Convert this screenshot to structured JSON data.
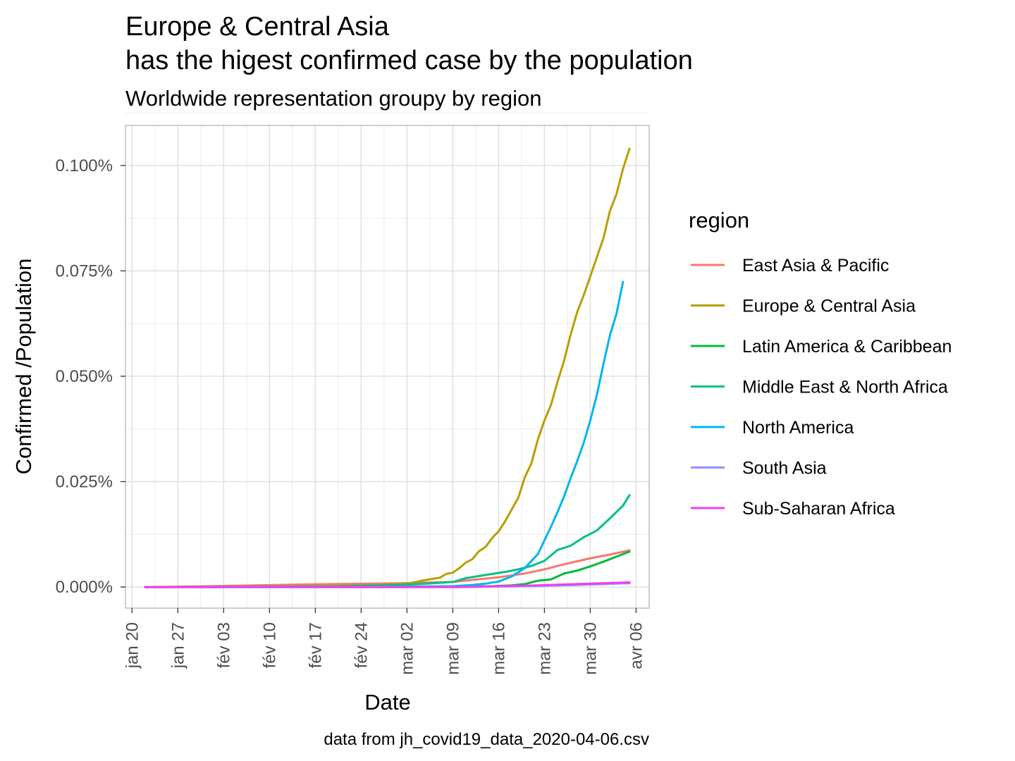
{
  "chart_data": {
    "type": "line",
    "title_line1": "Europe & Central Asia",
    "title_line2": "has the higest confirmed case by the population",
    "subtitle": "Worldwide representation groupy by region",
    "xlabel": "Date",
    "ylabel": "Confirmed /Population",
    "caption": "data from jh_covid19_data_2020-04-06.csv",
    "legend_title": "region",
    "legend_position": "right",
    "grid": true,
    "x_ticks": [
      {
        "date": "2020-01-20",
        "label": "jan 20"
      },
      {
        "date": "2020-01-27",
        "label": "jan 27"
      },
      {
        "date": "2020-02-03",
        "label": "fév 03"
      },
      {
        "date": "2020-02-10",
        "label": "fév 10"
      },
      {
        "date": "2020-02-17",
        "label": "fév 17"
      },
      {
        "date": "2020-02-24",
        "label": "fév 24"
      },
      {
        "date": "2020-03-02",
        "label": "mar 02"
      },
      {
        "date": "2020-03-09",
        "label": "mar 09"
      },
      {
        "date": "2020-03-16",
        "label": "mar 16"
      },
      {
        "date": "2020-03-23",
        "label": "mar 23"
      },
      {
        "date": "2020-03-30",
        "label": "mar 30"
      },
      {
        "date": "2020-04-06",
        "label": "avr 06"
      }
    ],
    "xlim": [
      "2020-01-19",
      "2020-04-08"
    ],
    "y_ticks": [
      {
        "value": 0,
        "label": "0.000%"
      },
      {
        "value": 0.025,
        "label": "0.025%"
      },
      {
        "value": 0.05,
        "label": "0.050%"
      },
      {
        "value": 0.075,
        "label": "0.075%"
      },
      {
        "value": 0.1,
        "label": "0.100%"
      }
    ],
    "ylim": [
      -0.005,
      0.1095
    ],
    "series": [
      {
        "name": "East Asia & Pacific",
        "color": "#F8766D",
        "points": [
          [
            "2020-01-22",
            0.0
          ],
          [
            "2020-02-01",
            0.0002
          ],
          [
            "2020-02-15",
            0.0006
          ],
          [
            "2020-03-01",
            0.0009
          ],
          [
            "2020-03-09",
            0.0012
          ],
          [
            "2020-03-16",
            0.0023
          ],
          [
            "2020-03-20",
            0.0032
          ],
          [
            "2020-03-23",
            0.0042
          ],
          [
            "2020-03-26",
            0.0054
          ],
          [
            "2020-03-30",
            0.0068
          ],
          [
            "2020-04-02",
            0.0077
          ],
          [
            "2020-04-05",
            0.0087
          ]
        ]
      },
      {
        "name": "Europe & Central Asia",
        "color": "#B79F00",
        "points": [
          [
            "2020-01-22",
            0.0
          ],
          [
            "2020-02-01",
            0.0
          ],
          [
            "2020-02-20",
            0.0003
          ],
          [
            "2020-02-27",
            0.0005
          ],
          [
            "2020-03-02",
            0.0008
          ],
          [
            "2020-03-05",
            0.0017
          ],
          [
            "2020-03-07",
            0.0022
          ],
          [
            "2020-03-08",
            0.0031
          ],
          [
            "2020-03-09",
            0.0034
          ],
          [
            "2020-03-10",
            0.0045
          ],
          [
            "2020-03-11",
            0.0058
          ],
          [
            "2020-03-12",
            0.0066
          ],
          [
            "2020-03-13",
            0.0085
          ],
          [
            "2020-03-14",
            0.0095
          ],
          [
            "2020-03-15",
            0.0116
          ],
          [
            "2020-03-16",
            0.0132
          ],
          [
            "2020-03-17",
            0.0156
          ],
          [
            "2020-03-18",
            0.0184
          ],
          [
            "2020-03-19",
            0.0212
          ],
          [
            "2020-03-20",
            0.026
          ],
          [
            "2020-03-21",
            0.0293
          ],
          [
            "2020-03-22",
            0.035
          ],
          [
            "2020-03-23",
            0.0395
          ],
          [
            "2020-03-24",
            0.0432
          ],
          [
            "2020-03-25",
            0.0487
          ],
          [
            "2020-03-26",
            0.0537
          ],
          [
            "2020-03-27",
            0.0598
          ],
          [
            "2020-03-28",
            0.0652
          ],
          [
            "2020-03-29",
            0.0692
          ],
          [
            "2020-03-30",
            0.0737
          ],
          [
            "2020-03-31",
            0.0782
          ],
          [
            "2020-04-01",
            0.0827
          ],
          [
            "2020-04-02",
            0.0892
          ],
          [
            "2020-04-03",
            0.0932
          ],
          [
            "2020-04-04",
            0.0992
          ],
          [
            "2020-04-05",
            0.104
          ]
        ]
      },
      {
        "name": "Latin America & Caribbean",
        "color": "#00BA38",
        "points": [
          [
            "2020-01-22",
            0.0
          ],
          [
            "2020-03-01",
            0.0
          ],
          [
            "2020-03-15",
            0.0002
          ],
          [
            "2020-03-18",
            0.0004
          ],
          [
            "2020-03-20",
            0.0007
          ],
          [
            "2020-03-22",
            0.0015
          ],
          [
            "2020-03-24",
            0.0018
          ],
          [
            "2020-03-26",
            0.0032
          ],
          [
            "2020-03-28",
            0.0039
          ],
          [
            "2020-03-30",
            0.0049
          ],
          [
            "2020-04-01",
            0.006
          ],
          [
            "2020-04-03",
            0.0072
          ],
          [
            "2020-04-05",
            0.0084
          ]
        ]
      },
      {
        "name": "Middle East & North Africa",
        "color": "#00C08B",
        "points": [
          [
            "2020-01-22",
            0.0
          ],
          [
            "2020-02-20",
            0.0001
          ],
          [
            "2020-03-01",
            0.0005
          ],
          [
            "2020-03-05",
            0.0008
          ],
          [
            "2020-03-09",
            0.0012
          ],
          [
            "2020-03-11",
            0.0021
          ],
          [
            "2020-03-13",
            0.0026
          ],
          [
            "2020-03-15",
            0.0031
          ],
          [
            "2020-03-17",
            0.0036
          ],
          [
            "2020-03-19",
            0.0042
          ],
          [
            "2020-03-21",
            0.005
          ],
          [
            "2020-03-23",
            0.0062
          ],
          [
            "2020-03-25",
            0.0088
          ],
          [
            "2020-03-27",
            0.0098
          ],
          [
            "2020-03-29",
            0.0118
          ],
          [
            "2020-03-31",
            0.0134
          ],
          [
            "2020-04-02",
            0.0163
          ],
          [
            "2020-04-04",
            0.0193
          ],
          [
            "2020-04-05",
            0.0218
          ]
        ]
      },
      {
        "name": "North America",
        "color": "#00B4EF",
        "points": [
          [
            "2020-01-22",
            0.0
          ],
          [
            "2020-03-01",
            0.0001
          ],
          [
            "2020-03-09",
            0.0002
          ],
          [
            "2020-03-12",
            0.0005
          ],
          [
            "2020-03-14",
            0.0008
          ],
          [
            "2020-03-16",
            0.0013
          ],
          [
            "2020-03-18",
            0.0025
          ],
          [
            "2020-03-20",
            0.0045
          ],
          [
            "2020-03-22",
            0.0078
          ],
          [
            "2020-03-24",
            0.0143
          ],
          [
            "2020-03-25",
            0.0178
          ],
          [
            "2020-03-26",
            0.0215
          ],
          [
            "2020-03-27",
            0.0258
          ],
          [
            "2020-03-28",
            0.0298
          ],
          [
            "2020-03-29",
            0.0342
          ],
          [
            "2020-03-30",
            0.0395
          ],
          [
            "2020-03-31",
            0.0455
          ],
          [
            "2020-04-01",
            0.0528
          ],
          [
            "2020-04-02",
            0.0597
          ],
          [
            "2020-04-03",
            0.0648
          ],
          [
            "2020-04-04",
            0.0724
          ]
        ]
      },
      {
        "name": "South Asia",
        "color": "#9590FF",
        "points": [
          [
            "2020-01-22",
            0.0
          ],
          [
            "2020-03-10",
            0.0
          ],
          [
            "2020-03-20",
            0.0002
          ],
          [
            "2020-03-28",
            0.0005
          ],
          [
            "2020-04-05",
            0.0009
          ]
        ]
      },
      {
        "name": "Sub-Saharan Africa",
        "color": "#F23FED",
        "points": [
          [
            "2020-01-22",
            0.0
          ],
          [
            "2020-03-10",
            0.0
          ],
          [
            "2020-03-20",
            0.0003
          ],
          [
            "2020-03-28",
            0.0007
          ],
          [
            "2020-04-05",
            0.0011
          ]
        ]
      }
    ]
  }
}
